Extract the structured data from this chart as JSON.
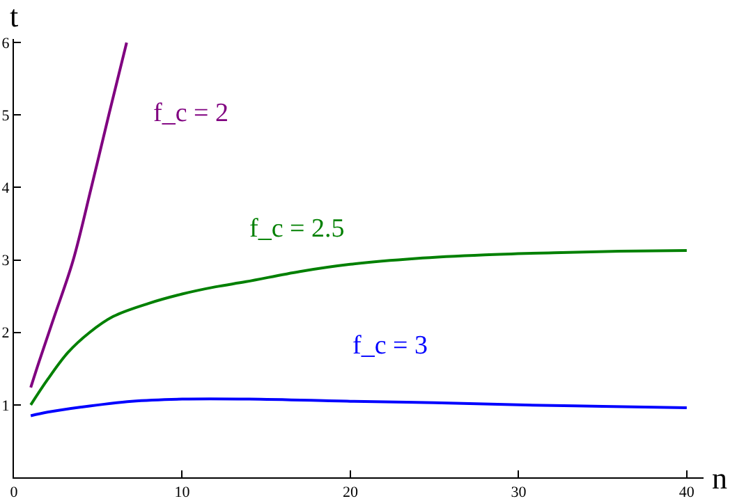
{
  "chart_data": {
    "type": "line",
    "xlabel": "n",
    "ylabel": "t",
    "xlim": [
      0,
      41
    ],
    "ylim": [
      0,
      6.05
    ],
    "xticks": [
      0,
      10,
      20,
      30,
      40
    ],
    "yticks": [
      1,
      2,
      3,
      4,
      5,
      6
    ],
    "grid": false,
    "marker": "none",
    "line_style": "solid",
    "series": [
      {
        "name": "f_c = 2",
        "color": "#800080",
        "x": [
          1,
          1.5,
          2.4,
          3.5,
          4.6,
          5.66,
          6.7
        ],
        "values": [
          1.24,
          1.6,
          2.22,
          2.98,
          4.0,
          5.02,
          6.0
        ]
      },
      {
        "name": "f_c = 2.5",
        "color": "#008000",
        "x": [
          1,
          2,
          3.2,
          4.5,
          5.9,
          8,
          10,
          12,
          13.8,
          17,
          20,
          23.9,
          28,
          32.1,
          36,
          40
        ],
        "values": [
          1.0,
          1.35,
          1.72,
          2.0,
          2.22,
          2.4,
          2.53,
          2.63,
          2.7,
          2.84,
          2.94,
          3.02,
          3.07,
          3.1,
          3.12,
          3.13
        ]
      },
      {
        "name": "f_c = 3",
        "color": "#0000ff",
        "x": [
          1,
          2,
          4,
          7,
          10,
          14,
          20,
          25,
          30,
          35,
          40
        ],
        "values": [
          0.85,
          0.9,
          0.97,
          1.05,
          1.08,
          1.08,
          1.05,
          1.03,
          1.0,
          0.98,
          0.96
        ]
      }
    ]
  }
}
